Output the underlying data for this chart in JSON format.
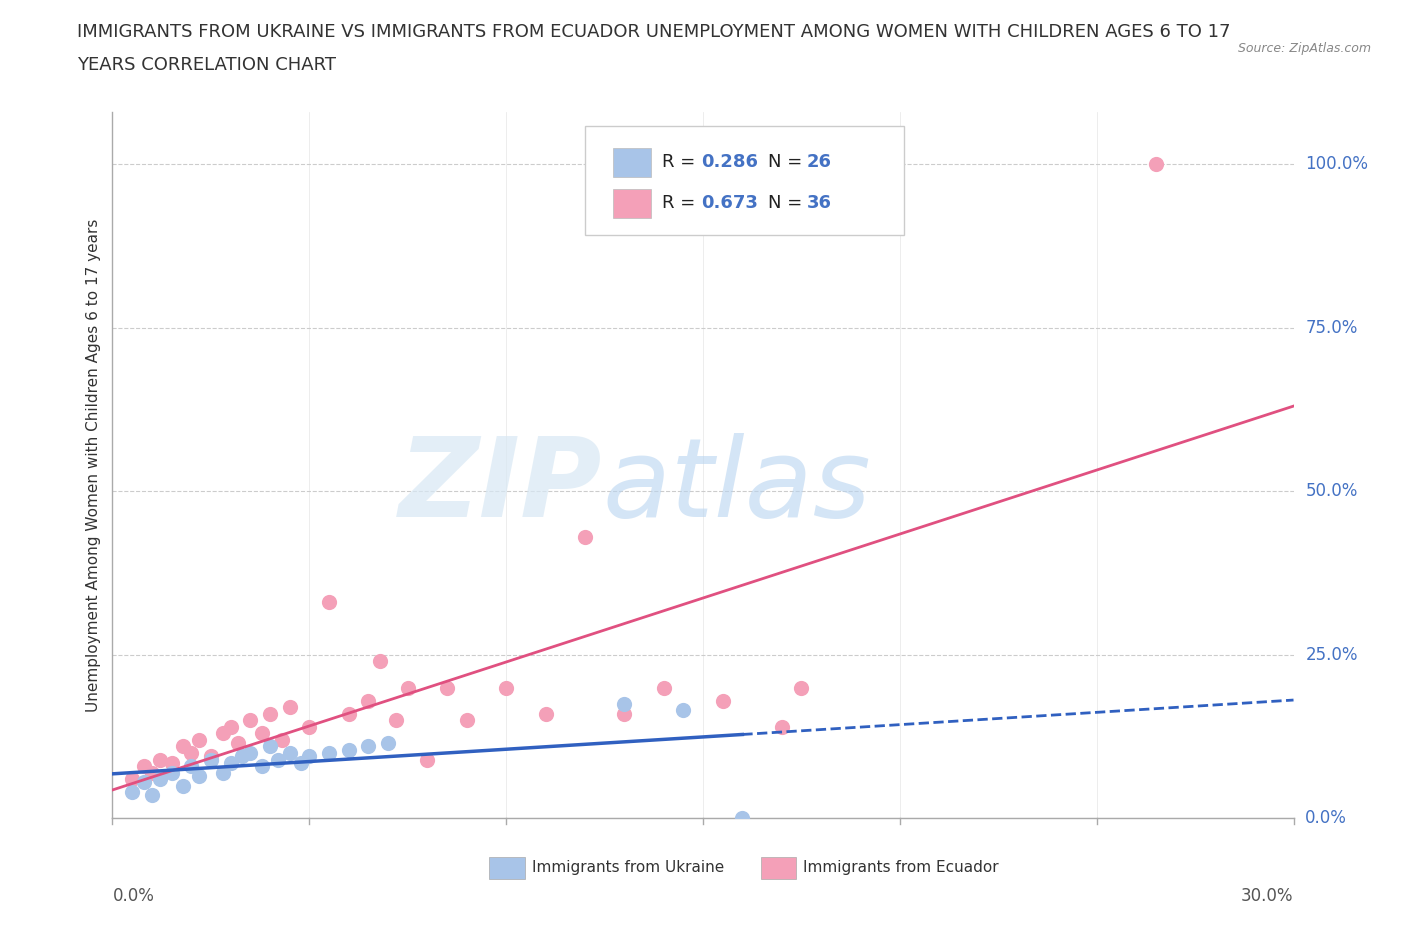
{
  "title_line1": "IMMIGRANTS FROM UKRAINE VS IMMIGRANTS FROM ECUADOR UNEMPLOYMENT AMONG WOMEN WITH CHILDREN AGES 6 TO 17",
  "title_line2": "YEARS CORRELATION CHART",
  "source": "Source: ZipAtlas.com",
  "ylabel": "Unemployment Among Women with Children Ages 6 to 17 years",
  "ukraine_color": "#a8c4e8",
  "ecuador_color": "#f4a0b8",
  "ukraine_line_color": "#3060c0",
  "ecuador_line_color": "#e05080",
  "ukraine_R": 0.286,
  "ukraine_N": 26,
  "ecuador_R": 0.673,
  "ecuador_N": 36,
  "legend_R_N_color": "#4472c4",
  "watermark_zip": "ZIP",
  "watermark_atlas": "atlas",
  "xmin": 0.0,
  "xmax": 0.3,
  "ymin": 0.0,
  "ymax": 1.08,
  "grid_color": "#cccccc",
  "background_color": "#ffffff",
  "title_fontsize": 13,
  "axis_label_fontsize": 11,
  "tick_fontsize": 12,
  "ukraine_scatter_x": [
    0.005,
    0.008,
    0.01,
    0.012,
    0.015,
    0.018,
    0.02,
    0.022,
    0.025,
    0.028,
    0.03,
    0.033,
    0.035,
    0.038,
    0.04,
    0.042,
    0.045,
    0.048,
    0.05,
    0.055,
    0.06,
    0.065,
    0.07,
    0.13,
    0.145,
    0.16
  ],
  "ukraine_scatter_y": [
    0.04,
    0.055,
    0.035,
    0.06,
    0.07,
    0.05,
    0.08,
    0.065,
    0.09,
    0.07,
    0.085,
    0.095,
    0.1,
    0.08,
    0.11,
    0.09,
    0.1,
    0.085,
    0.095,
    0.1,
    0.105,
    0.11,
    0.115,
    0.175,
    0.165,
    0.0
  ],
  "ecuador_scatter_x": [
    0.005,
    0.008,
    0.01,
    0.012,
    0.015,
    0.018,
    0.02,
    0.022,
    0.025,
    0.028,
    0.03,
    0.032,
    0.035,
    0.038,
    0.04,
    0.043,
    0.045,
    0.05,
    0.055,
    0.06,
    0.065,
    0.068,
    0.072,
    0.075,
    0.085,
    0.09,
    0.1,
    0.11,
    0.12,
    0.13,
    0.14,
    0.155,
    0.17,
    0.175,
    0.265,
    0.08
  ],
  "ecuador_scatter_y": [
    0.06,
    0.08,
    0.07,
    0.09,
    0.085,
    0.11,
    0.1,
    0.12,
    0.095,
    0.13,
    0.14,
    0.115,
    0.15,
    0.13,
    0.16,
    0.12,
    0.17,
    0.14,
    0.33,
    0.16,
    0.18,
    0.24,
    0.15,
    0.2,
    0.2,
    0.15,
    0.2,
    0.16,
    0.43,
    0.16,
    0.2,
    0.18,
    0.14,
    0.2,
    1.0,
    0.09
  ]
}
